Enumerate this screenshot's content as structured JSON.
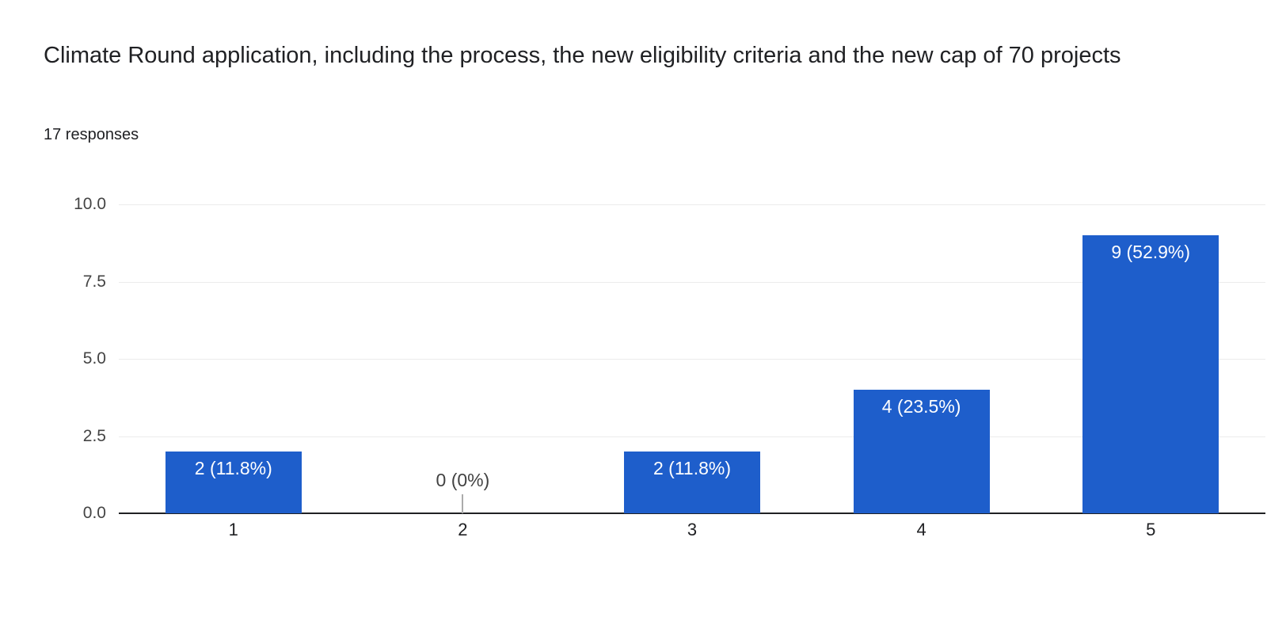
{
  "header": {
    "title": "Climate Round application, including the process, the new eligibility criteria and the new cap of 70 projects",
    "responses_count": "17 responses"
  },
  "chart_data": {
    "type": "bar",
    "title": "Climate Round application, including the process, the new eligibility criteria and the new cap of 70 projects",
    "subtitle": "17 responses",
    "categories": [
      "1",
      "2",
      "3",
      "4",
      "5"
    ],
    "values": [
      2,
      0,
      2,
      4,
      9
    ],
    "bar_labels": [
      "2 (11.8%)",
      "0 (0%)",
      "2 (11.8%)",
      "4 (23.5%)",
      "9 (52.9%)"
    ],
    "xlabel": "",
    "ylabel": "",
    "ylim": [
      0,
      10
    ],
    "yticks": [
      {
        "label": "0.0",
        "value": 0
      },
      {
        "label": "2.5",
        "value": 2.5
      },
      {
        "label": "5.0",
        "value": 5
      },
      {
        "label": "7.5",
        "value": 7.5
      },
      {
        "label": "10.0",
        "value": 10
      }
    ],
    "grid": true,
    "legend": "none",
    "colors": {
      "bar": "#1e5ecb",
      "bar_label_text": "#ffffff",
      "zero_label_text": "#424242",
      "zero_tick": "#ababab",
      "y_axis_text": "#444444",
      "x_axis_text": "#202124",
      "gridline": "#ececec",
      "baseline": "#202124"
    }
  }
}
